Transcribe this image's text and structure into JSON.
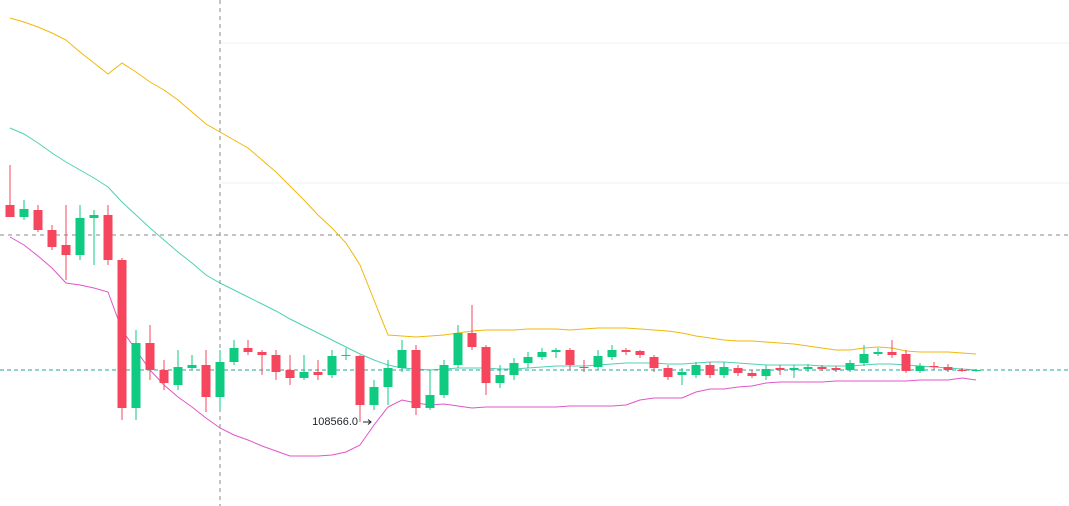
{
  "chart_data": {
    "type": "candlestick",
    "ylim": [
      107726,
      112786
    ],
    "up_color": "#0ecb81",
    "down_color": "#f6465d",
    "open": [
      110736,
      110616,
      110686,
      110486,
      110336,
      110236,
      110606,
      110636,
      110186,
      108706,
      109356,
      109086,
      108936,
      109106,
      109136,
      108816,
      109166,
      109306,
      109266,
      109236,
      109086,
      109006,
      109066,
      109036,
      109226,
      109226,
      108736,
      108916,
      109106,
      109286,
      108706,
      108836,
      109136,
      109456,
      109316,
      108956,
      109036,
      109156,
      109216,
      109266,
      109286,
      109116,
      109116,
      109216,
      109286,
      109276,
      109216,
      109106,
      109036,
      109036,
      109136,
      109036,
      109106,
      109056,
      109026,
      109106,
      109086,
      109096,
      109116,
      109106,
      109086,
      109156,
      109246,
      109266,
      109246,
      109076,
      109126,
      109116,
      109086,
      109076
    ],
    "high": [
      111136,
      110786,
      110736,
      110536,
      110736,
      110736,
      110686,
      110736,
      110206,
      109486,
      109536,
      109186,
      109286,
      109236,
      109286,
      109286,
      109386,
      109386,
      109286,
      109286,
      109236,
      109236,
      109186,
      109286,
      109306,
      109236,
      108986,
      109186,
      109386,
      109336,
      109086,
      109186,
      109536,
      109736,
      109336,
      109136,
      109206,
      109266,
      109306,
      109306,
      109306,
      109186,
      109286,
      109336,
      109306,
      109286,
      109236,
      109136,
      109106,
      109166,
      109166,
      109166,
      109136,
      109086,
      109136,
      109136,
      109136,
      109146,
      109136,
      109126,
      109186,
      109336,
      109306,
      109386,
      109286,
      109156,
      109166,
      109146,
      109106,
      109096
    ],
    "low": [
      110616,
      110586,
      110466,
      110286,
      109986,
      110186,
      110136,
      110136,
      108586,
      108586,
      108986,
      108886,
      108886,
      109086,
      108666,
      108686,
      109136,
      109236,
      109036,
      108986,
      108936,
      108986,
      108986,
      109006,
      109186,
      108566,
      108686,
      108736,
      109066,
      108636,
      108686,
      108806,
      109106,
      109286,
      108836,
      108906,
      108986,
      109106,
      109186,
      109206,
      109086,
      109066,
      109086,
      109186,
      109236,
      109206,
      109066,
      108986,
      108936,
      109006,
      109006,
      109006,
      109026,
      109006,
      108986,
      109036,
      109006,
      109066,
      109076,
      109066,
      109066,
      109126,
      109226,
      109206,
      109056,
      109056,
      109086,
      109066,
      109066,
      109066
    ],
    "close": [
      110616,
      110696,
      110486,
      110316,
      110236,
      110606,
      110636,
      110186,
      108706,
      109356,
      109086,
      108956,
      109116,
      109136,
      108816,
      109166,
      109306,
      109266,
      109236,
      109066,
      109006,
      109066,
      109036,
      109226,
      109236,
      108736,
      108916,
      109106,
      109286,
      108706,
      108836,
      109136,
      109456,
      109316,
      108956,
      109036,
      109156,
      109216,
      109266,
      109286,
      109136,
      109106,
      109226,
      109286,
      109266,
      109236,
      109106,
      109016,
      109066,
      109136,
      109036,
      109116,
      109056,
      109026,
      109096,
      109086,
      109106,
      109116,
      109096,
      109086,
      109156,
      109246,
      109266,
      109236,
      109076,
      109126,
      109116,
      109086,
      109076,
      109086
    ],
    "bands": {
      "upper": {
        "color": "#f0b90b",
        "values": [
          112606,
          112566,
          112516,
          112456,
          112386,
          112266,
          112156,
          112046,
          112156,
          112066,
          111966,
          111886,
          111786,
          111666,
          111546,
          111466,
          111386,
          111306,
          111186,
          111066,
          110926,
          110786,
          110636,
          110506,
          110356,
          110136,
          109786,
          109436,
          109426,
          109416,
          109426,
          109436,
          109456,
          109476,
          109486,
          109486,
          109486,
          109496,
          109496,
          109496,
          109486,
          109496,
          109506,
          109506,
          109506,
          109496,
          109486,
          109476,
          109456,
          109426,
          109406,
          109386,
          109376,
          109376,
          109366,
          109356,
          109346,
          109326,
          109306,
          109286,
          109286,
          109306,
          109316,
          109306,
          109276,
          109266,
          109266,
          109266,
          109256,
          109246
        ]
      },
      "middle": {
        "color": "#4fd1b5",
        "values": [
          111506,
          111446,
          111356,
          111256,
          111166,
          111086,
          111006,
          110916,
          110766,
          110636,
          110506,
          110386,
          110266,
          110156,
          110036,
          109956,
          109886,
          109816,
          109746,
          109676,
          109596,
          109526,
          109456,
          109386,
          109316,
          109246,
          109186,
          109136,
          109106,
          109096,
          109086,
          109096,
          109106,
          109106,
          109106,
          109096,
          109096,
          109106,
          109116,
          109126,
          109126,
          109126,
          109136,
          109146,
          109156,
          109156,
          109156,
          109146,
          109146,
          109156,
          109166,
          109166,
          109156,
          109146,
          109136,
          109136,
          109136,
          109136,
          109126,
          109126,
          109126,
          109136,
          109146,
          109146,
          109136,
          109126,
          109116,
          109106,
          109096,
          109086
        ]
      },
      "lower": {
        "color": "#e056c9",
        "values": [
          110416,
          110336,
          110226,
          110106,
          109956,
          109936,
          109906,
          109866,
          109486,
          109286,
          109086,
          108936,
          108816,
          108716,
          108606,
          108506,
          108436,
          108386,
          108326,
          108276,
          108226,
          108226,
          108226,
          108236,
          108266,
          108336,
          108536,
          108716,
          108786,
          108756,
          108736,
          108746,
          108726,
          108706,
          108716,
          108716,
          108716,
          108716,
          108716,
          108716,
          108726,
          108726,
          108726,
          108726,
          108736,
          108786,
          108806,
          108806,
          108806,
          108866,
          108896,
          108896,
          108916,
          108926,
          108956,
          108966,
          108966,
          108966,
          108966,
          108976,
          108976,
          108976,
          108976,
          108976,
          108976,
          108986,
          108986,
          108986,
          109006,
          108986
        ]
      }
    },
    "annotation": {
      "value": 108566,
      "label": "108566.0"
    },
    "price_line_color": "#26a69a"
  }
}
